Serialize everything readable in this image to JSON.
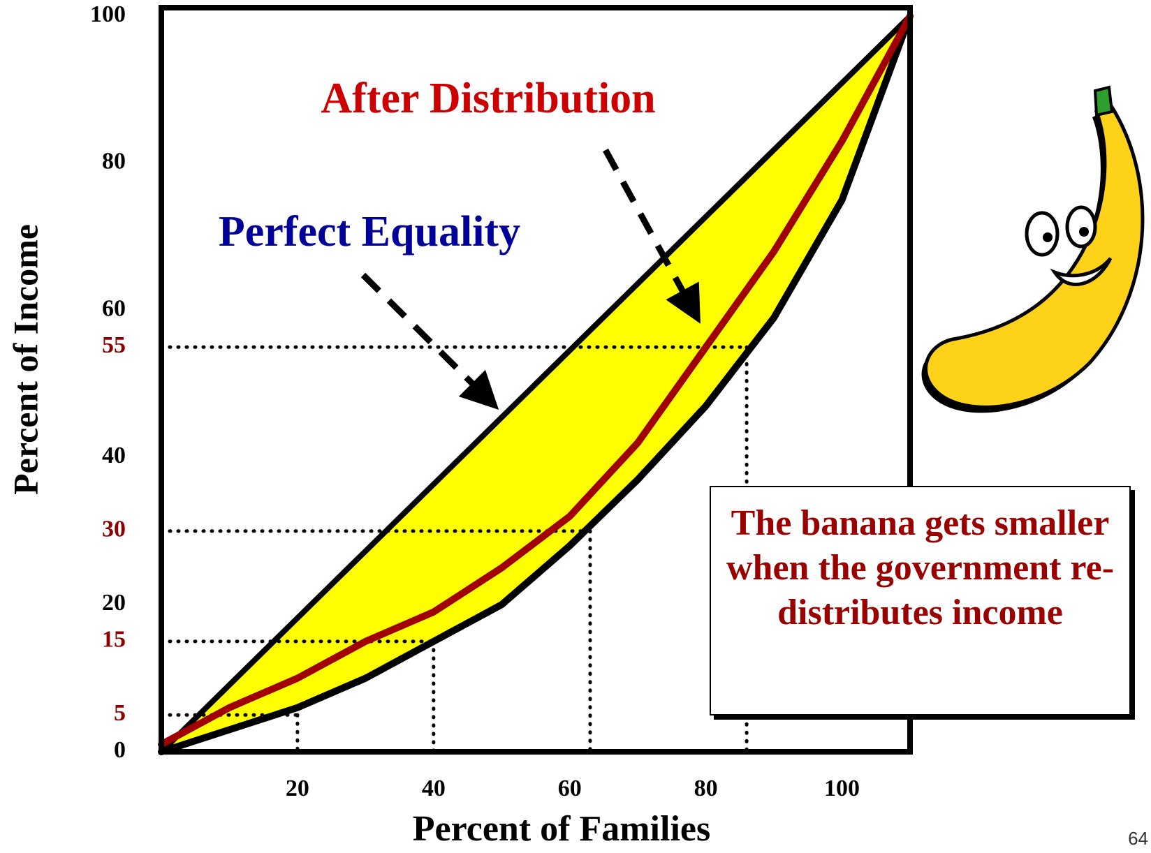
{
  "chart_data": {
    "type": "line",
    "xlabel": "Percent of Families",
    "ylabel": "Percent of Income",
    "xlim": [
      0,
      110
    ],
    "ylim": [
      0,
      100
    ],
    "xticks": [
      20,
      40,
      60,
      80,
      100
    ],
    "yticks": [
      0,
      5,
      15,
      20,
      30,
      40,
      55,
      60,
      80,
      100
    ],
    "ytick_colors": [
      "#000000",
      "#8b0000",
      "#8b0000",
      "#000000",
      "#8b0000",
      "#000000",
      "#8b0000",
      "#000000",
      "#000000",
      "#000000"
    ],
    "fill_color": "#ffff00",
    "series": [
      {
        "name": "Perfect Equality",
        "color": "#000000",
        "label_color": "#000099",
        "x": [
          0,
          110
        ],
        "values": [
          0,
          100
        ]
      },
      {
        "color": "#000000",
        "x": [
          0,
          10,
          20,
          30,
          40,
          50,
          60,
          70,
          80,
          90,
          100,
          110
        ],
        "values": [
          0,
          3,
          6,
          10,
          15,
          20,
          28,
          37,
          47,
          59,
          75,
          100
        ]
      },
      {
        "name": "After Distribution",
        "color": "#a00000",
        "label_color": "#cc0000",
        "x": [
          0,
          10,
          20,
          30,
          40,
          50,
          60,
          70,
          80,
          90,
          100,
          110
        ],
        "values": [
          1,
          6,
          10,
          15,
          19,
          25,
          32,
          42,
          55,
          68,
          83,
          100
        ]
      }
    ],
    "guides": [
      {
        "x": 20,
        "y": 5
      },
      {
        "x": 40,
        "y": 15
      },
      {
        "x": 63,
        "y": 30
      },
      {
        "x": 86,
        "y": 55
      }
    ],
    "note": "The banana gets smaller when the government re-distributes income",
    "page_number": "64"
  }
}
